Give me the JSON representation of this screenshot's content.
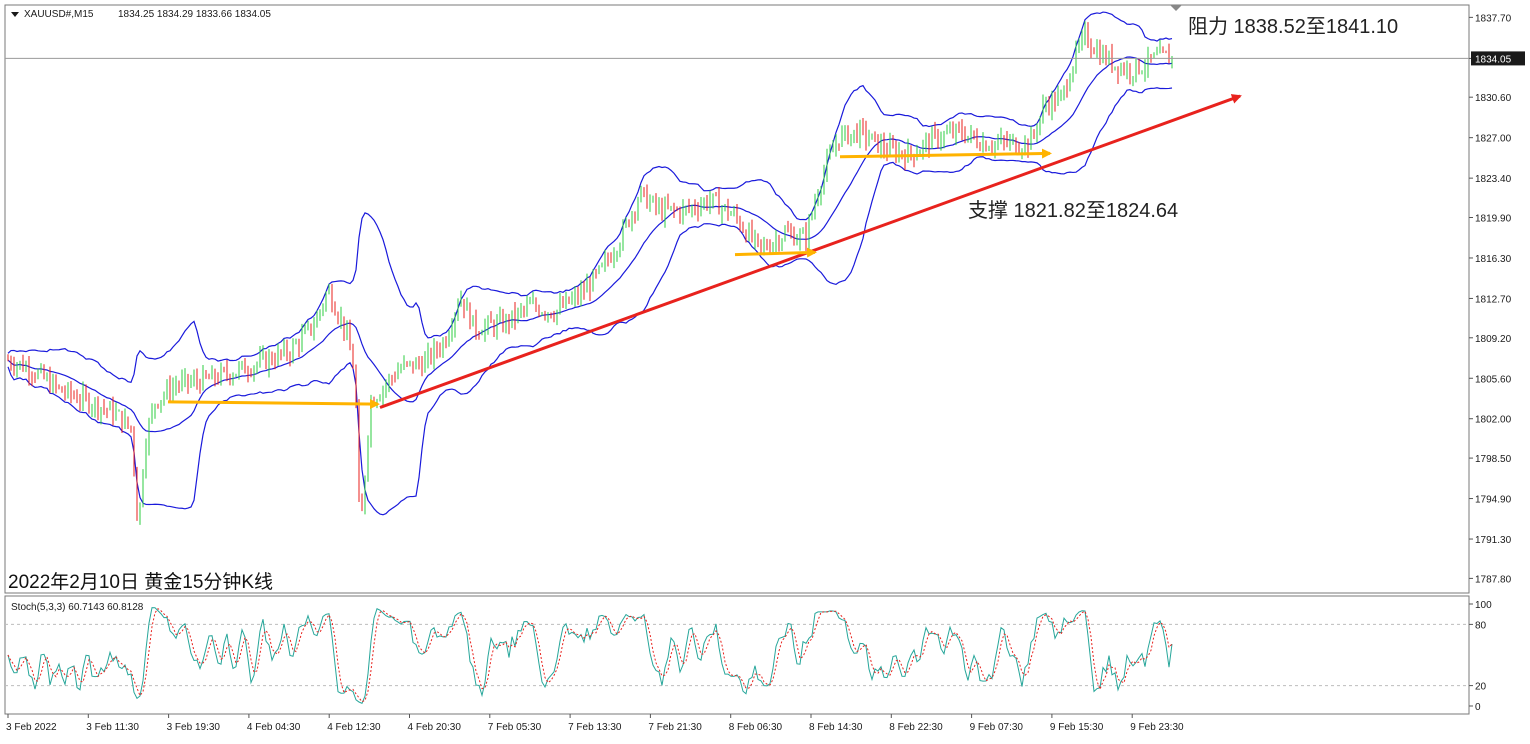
{
  "header": {
    "symbol": "XAUUSD#,M15",
    "ohlc": "1834.25 1834.29 1833.66 1834.05"
  },
  "caption": "2022年2月10日 黄金15分钟K线",
  "annotations": {
    "resistance": "阻力 1838.52至1841.10",
    "support": "支撑 1821.82至1824.64"
  },
  "indicator": {
    "label": "Stoch(5,3,3) 60.7143 60.8128",
    "levels": [
      100,
      80,
      20,
      0
    ],
    "level_labels": [
      "100",
      "80",
      "20",
      "0"
    ]
  },
  "chart_data": {
    "type": "candlestick",
    "symbol": "XAUUSD#",
    "timeframe": "M15",
    "current_price": 1834.05,
    "current_price_label": "1834.05",
    "ylim": [
      1786.5,
      1838.8
    ],
    "y_ticks": [
      1837.7,
      1834.05,
      1830.6,
      1827.0,
      1823.4,
      1819.9,
      1816.3,
      1812.7,
      1809.2,
      1805.6,
      1802.0,
      1798.5,
      1794.9,
      1791.3,
      1787.8
    ],
    "y_tick_labels": [
      "1837.70",
      "1834.05",
      "1830.60",
      "1827.00",
      "1823.40",
      "1819.90",
      "1816.30",
      "1812.70",
      "1809.20",
      "1805.60",
      "1802.00",
      "1798.50",
      "1794.90",
      "1791.30",
      "1787.80"
    ],
    "x_tick_labels": [
      "3 Feb 2022",
      "3 Feb 11:30",
      "3 Feb 19:30",
      "4 Feb 04:30",
      "4 Feb 12:30",
      "4 Feb 20:30",
      "7 Feb 05:30",
      "7 Feb 13:30",
      "7 Feb 21:30",
      "8 Feb 06:30",
      "8 Feb 14:30",
      "8 Feb 22:30",
      "9 Feb 07:30",
      "9 Feb 15:30",
      "9 Feb 23:30"
    ],
    "price_path": [
      [
        0,
        1807.5
      ],
      [
        30,
        1806.5
      ],
      [
        60,
        1804.5
      ],
      [
        90,
        1803.5
      ],
      [
        115,
        1802.5
      ],
      [
        132,
        1801.0
      ],
      [
        138,
        1792.0
      ],
      [
        145,
        1800.0
      ],
      [
        155,
        1803.5
      ],
      [
        175,
        1805.0
      ],
      [
        210,
        1805.5
      ],
      [
        245,
        1806.5
      ],
      [
        290,
        1808.0
      ],
      [
        315,
        1810.5
      ],
      [
        328,
        1813.5
      ],
      [
        345,
        1810.0
      ],
      [
        355,
        1806.0
      ],
      [
        360,
        1791.0
      ],
      [
        370,
        1803.5
      ],
      [
        385,
        1805.0
      ],
      [
        400,
        1806.5
      ],
      [
        425,
        1807.0
      ],
      [
        445,
        1809.0
      ],
      [
        460,
        1813.0
      ],
      [
        475,
        1810.0
      ],
      [
        505,
        1810.5
      ],
      [
        530,
        1812.0
      ],
      [
        555,
        1811.5
      ],
      [
        580,
        1813.0
      ],
      [
        600,
        1815.0
      ],
      [
        620,
        1818.0
      ],
      [
        640,
        1822.0
      ],
      [
        660,
        1820.5
      ],
      [
        685,
        1820.5
      ],
      [
        710,
        1821.5
      ],
      [
        735,
        1820.0
      ],
      [
        760,
        1817.0
      ],
      [
        785,
        1818.5
      ],
      [
        805,
        1818.0
      ],
      [
        820,
        1823.0
      ],
      [
        838,
        1827.0
      ],
      [
        860,
        1827.5
      ],
      [
        885,
        1826.0
      ],
      [
        910,
        1825.5
      ],
      [
        935,
        1827.0
      ],
      [
        960,
        1827.5
      ],
      [
        985,
        1826.5
      ],
      [
        1010,
        1826.5
      ],
      [
        1030,
        1826.5
      ],
      [
        1045,
        1830.0
      ],
      [
        1062,
        1830.5
      ],
      [
        1072,
        1833.5
      ],
      [
        1085,
        1836.0
      ],
      [
        1100,
        1834.5
      ],
      [
        1115,
        1833.5
      ],
      [
        1130,
        1833.0
      ],
      [
        1145,
        1833.5
      ],
      [
        1160,
        1834.2
      ],
      [
        1172,
        1834.0
      ]
    ],
    "stoch_k_period": 5,
    "stoch_d_period": 3,
    "stoch_slowing": 3,
    "stoch_main": 60.7143,
    "stoch_signal": 60.8128,
    "trendlines": [
      {
        "name": "uptrend",
        "color": "#e8221d",
        "from": [
          380,
          1803.0
        ],
        "to": [
          1240,
          1830.7
        ]
      },
      {
        "name": "support-1",
        "color": "#ffb300",
        "from": [
          168,
          1803.5
        ],
        "to": [
          378,
          1803.3
        ]
      },
      {
        "name": "support-2",
        "color": "#ffb300",
        "from": [
          735,
          1816.6
        ],
        "to": [
          815,
          1816.8
        ]
      },
      {
        "name": "support-3",
        "color": "#ffb300",
        "from": [
          840,
          1825.3
        ],
        "to": [
          1050,
          1825.6
        ]
      }
    ],
    "colors": {
      "bull": "#2ecc40",
      "bear": "#e8221d",
      "band": "#1a1adb",
      "stoch_main": "#26a69a",
      "stoch_signal": "#e8221d",
      "trend": "#e8221d",
      "support": "#ffb300"
    }
  }
}
